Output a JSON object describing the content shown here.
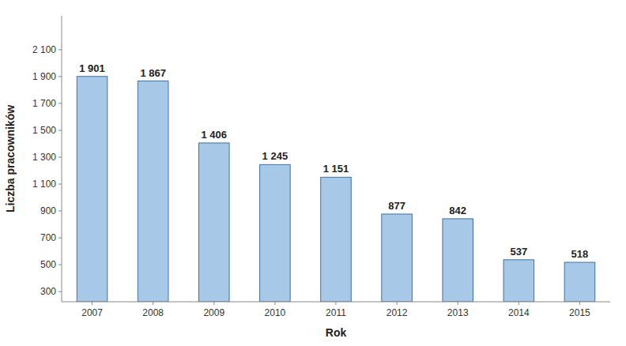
{
  "chart_data": {
    "type": "bar",
    "categories": [
      "2007",
      "2008",
      "2009",
      "2010",
      "2011",
      "2012",
      "2013",
      "2014",
      "2015"
    ],
    "values": [
      1901,
      1867,
      1406,
      1245,
      1151,
      877,
      842,
      537,
      518
    ],
    "value_labels": [
      "1 901",
      "1 867",
      "1 406",
      "1 245",
      "1 151",
      "877",
      "842",
      "537",
      "518"
    ],
    "data_labels": true,
    "color": "#a8c8e8",
    "x_label": "Rok",
    "y_label": "Liczba pracowników",
    "ylim": [
      224.4,
      2352
    ],
    "yticks": [
      300,
      500,
      700,
      900,
      {
        "value": 1100,
        "label": "1 100"
      },
      {
        "value": 1300,
        "label": "1 300"
      },
      {
        "value": 1500,
        "label": "1 500"
      },
      {
        "value": 1700,
        "label": "1 700"
      },
      {
        "value": 1900,
        "label": "1 900"
      },
      {
        "value": 2100,
        "label": "2 100"
      }
    ],
    "grid": false
  }
}
